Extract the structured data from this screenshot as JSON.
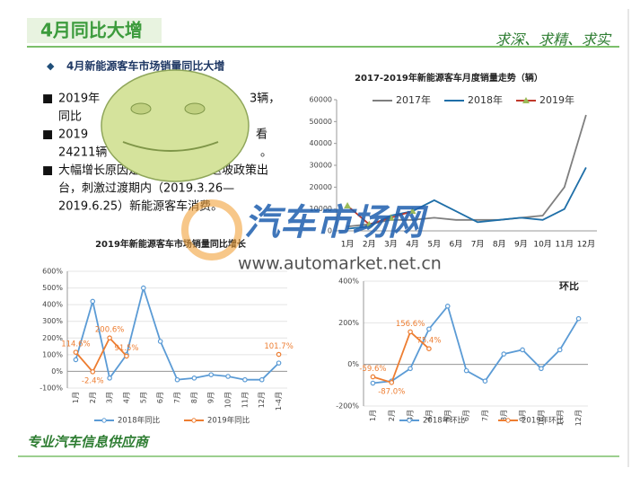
{
  "header": {
    "title": "4月同比大增",
    "motto": "求深、求精、求实"
  },
  "section": "4月新能源客车市场销量同比大增",
  "bullets": [
    [
      "2019年",
      "3辆，",
      "同比"
    ],
    [
      "2019",
      "看",
      "24211辆",
      "。"
    ],
    [
      "大幅增长原因是：新一轮补贴退坡政策出",
      "台，刺激过渡期内（2019.3.26—",
      "2019.6.25）新能源客车消费。"
    ]
  ],
  "watermark": {
    "name": "汽车市场网",
    "url": "www.automarket.net.cn"
  },
  "footer": "专业汽车信息供应商",
  "chart_data": [
    {
      "type": "line",
      "title": "2017-2019年新能源客车月度销量走势（辆）",
      "legend": "top",
      "grid": false,
      "categories": [
        "1月",
        "2月",
        "3月",
        "4月",
        "5月",
        "6月",
        "7月",
        "8月",
        "9月",
        "10月",
        "11月",
        "12月"
      ],
      "ylim": [
        0,
        60000
      ],
      "yticks": [
        0,
        10000,
        20000,
        30000,
        40000,
        50000,
        60000
      ],
      "series": [
        {
          "name": "2017年",
          "color": "#7f7f7f",
          "marker": "none",
          "values": [
            2000,
            3000,
            5000,
            5000,
            6000,
            5000,
            5000,
            5000,
            6000,
            7000,
            20000,
            53000
          ]
        },
        {
          "name": "2018年",
          "color": "#1f6fa8",
          "marker": "none",
          "values": [
            1000,
            2000,
            7000,
            9000,
            14000,
            9000,
            4000,
            5000,
            6000,
            5000,
            10000,
            29000
          ]
        },
        {
          "name": "2019年",
          "color": "#c0392b",
          "marker": "triangle",
          "values": [
            11500,
            3000,
            6000,
            9000,
            null,
            null,
            null,
            null,
            null,
            null,
            null,
            null
          ]
        }
      ]
    },
    {
      "type": "line",
      "title": "2019年新能源客车市场销量同比增长",
      "legend": "bottom",
      "grid": true,
      "categories": [
        "1月",
        "2月",
        "3月",
        "4月",
        "5月",
        "6月",
        "7月",
        "8月",
        "9月",
        "10月",
        "11月",
        "12月",
        "1-4月"
      ],
      "ylim": [
        -100,
        600
      ],
      "yticks": [
        {
          "value": -100,
          "label": "-100%"
        },
        {
          "value": 0,
          "label": "0%"
        },
        {
          "value": 100,
          "label": "100%"
        },
        {
          "value": 200,
          "label": "200%"
        },
        {
          "value": 300,
          "label": "300%"
        },
        {
          "value": 400,
          "label": "400%"
        },
        {
          "value": 500,
          "label": "500%"
        },
        {
          "value": 600,
          "label": "600%"
        }
      ],
      "series": [
        {
          "name": "2018年同比",
          "color": "#5b9bd5",
          "marker": "circle",
          "values": [
            70,
            420,
            -40,
            100,
            500,
            180,
            -50,
            -40,
            -20,
            -30,
            -50,
            -50,
            50
          ]
        },
        {
          "name": "2019年同比",
          "color": "#ed7d31",
          "marker": "circle",
          "values": [
            114.6,
            -2.4,
            200.6,
            91.5,
            null,
            null,
            null,
            null,
            null,
            null,
            null,
            null,
            101.7
          ],
          "value_labels": [
            "114.6%",
            "-2.4%",
            "200.6%",
            "91.5%",
            null,
            null,
            null,
            null,
            null,
            null,
            null,
            null,
            "101.7%"
          ]
        }
      ]
    },
    {
      "type": "line",
      "title": "环比",
      "legend": "bottom",
      "grid": true,
      "categories": [
        "1月",
        "2月",
        "3月",
        "4月",
        "5月",
        "6月",
        "7月",
        "8月",
        "9月",
        "10月",
        "11月",
        "12月"
      ],
      "ylim": [
        -200,
        400
      ],
      "yticks": [
        {
          "value": -200,
          "label": "-200%"
        },
        {
          "value": 0,
          "label": "0%"
        },
        {
          "value": 200,
          "label": "200%"
        },
        {
          "value": 400,
          "label": "400%"
        }
      ],
      "series": [
        {
          "name": "2018年环比",
          "color": "#5b9bd5",
          "marker": "circle",
          "values": [
            -90,
            -80,
            -20,
            170,
            280,
            -30,
            -80,
            50,
            70,
            -20,
            70,
            220
          ]
        },
        {
          "name": "2019年环比",
          "color": "#ed7d31",
          "marker": "circle",
          "values": [
            -59.6,
            -87.0,
            156.6,
            75.4,
            null,
            null,
            null,
            null,
            null,
            null,
            null,
            null
          ],
          "value_labels": [
            "-59.6%",
            "-87.0%",
            "156.6%",
            "75.4%",
            null,
            null,
            null,
            null,
            null,
            null,
            null,
            null
          ]
        }
      ]
    }
  ]
}
